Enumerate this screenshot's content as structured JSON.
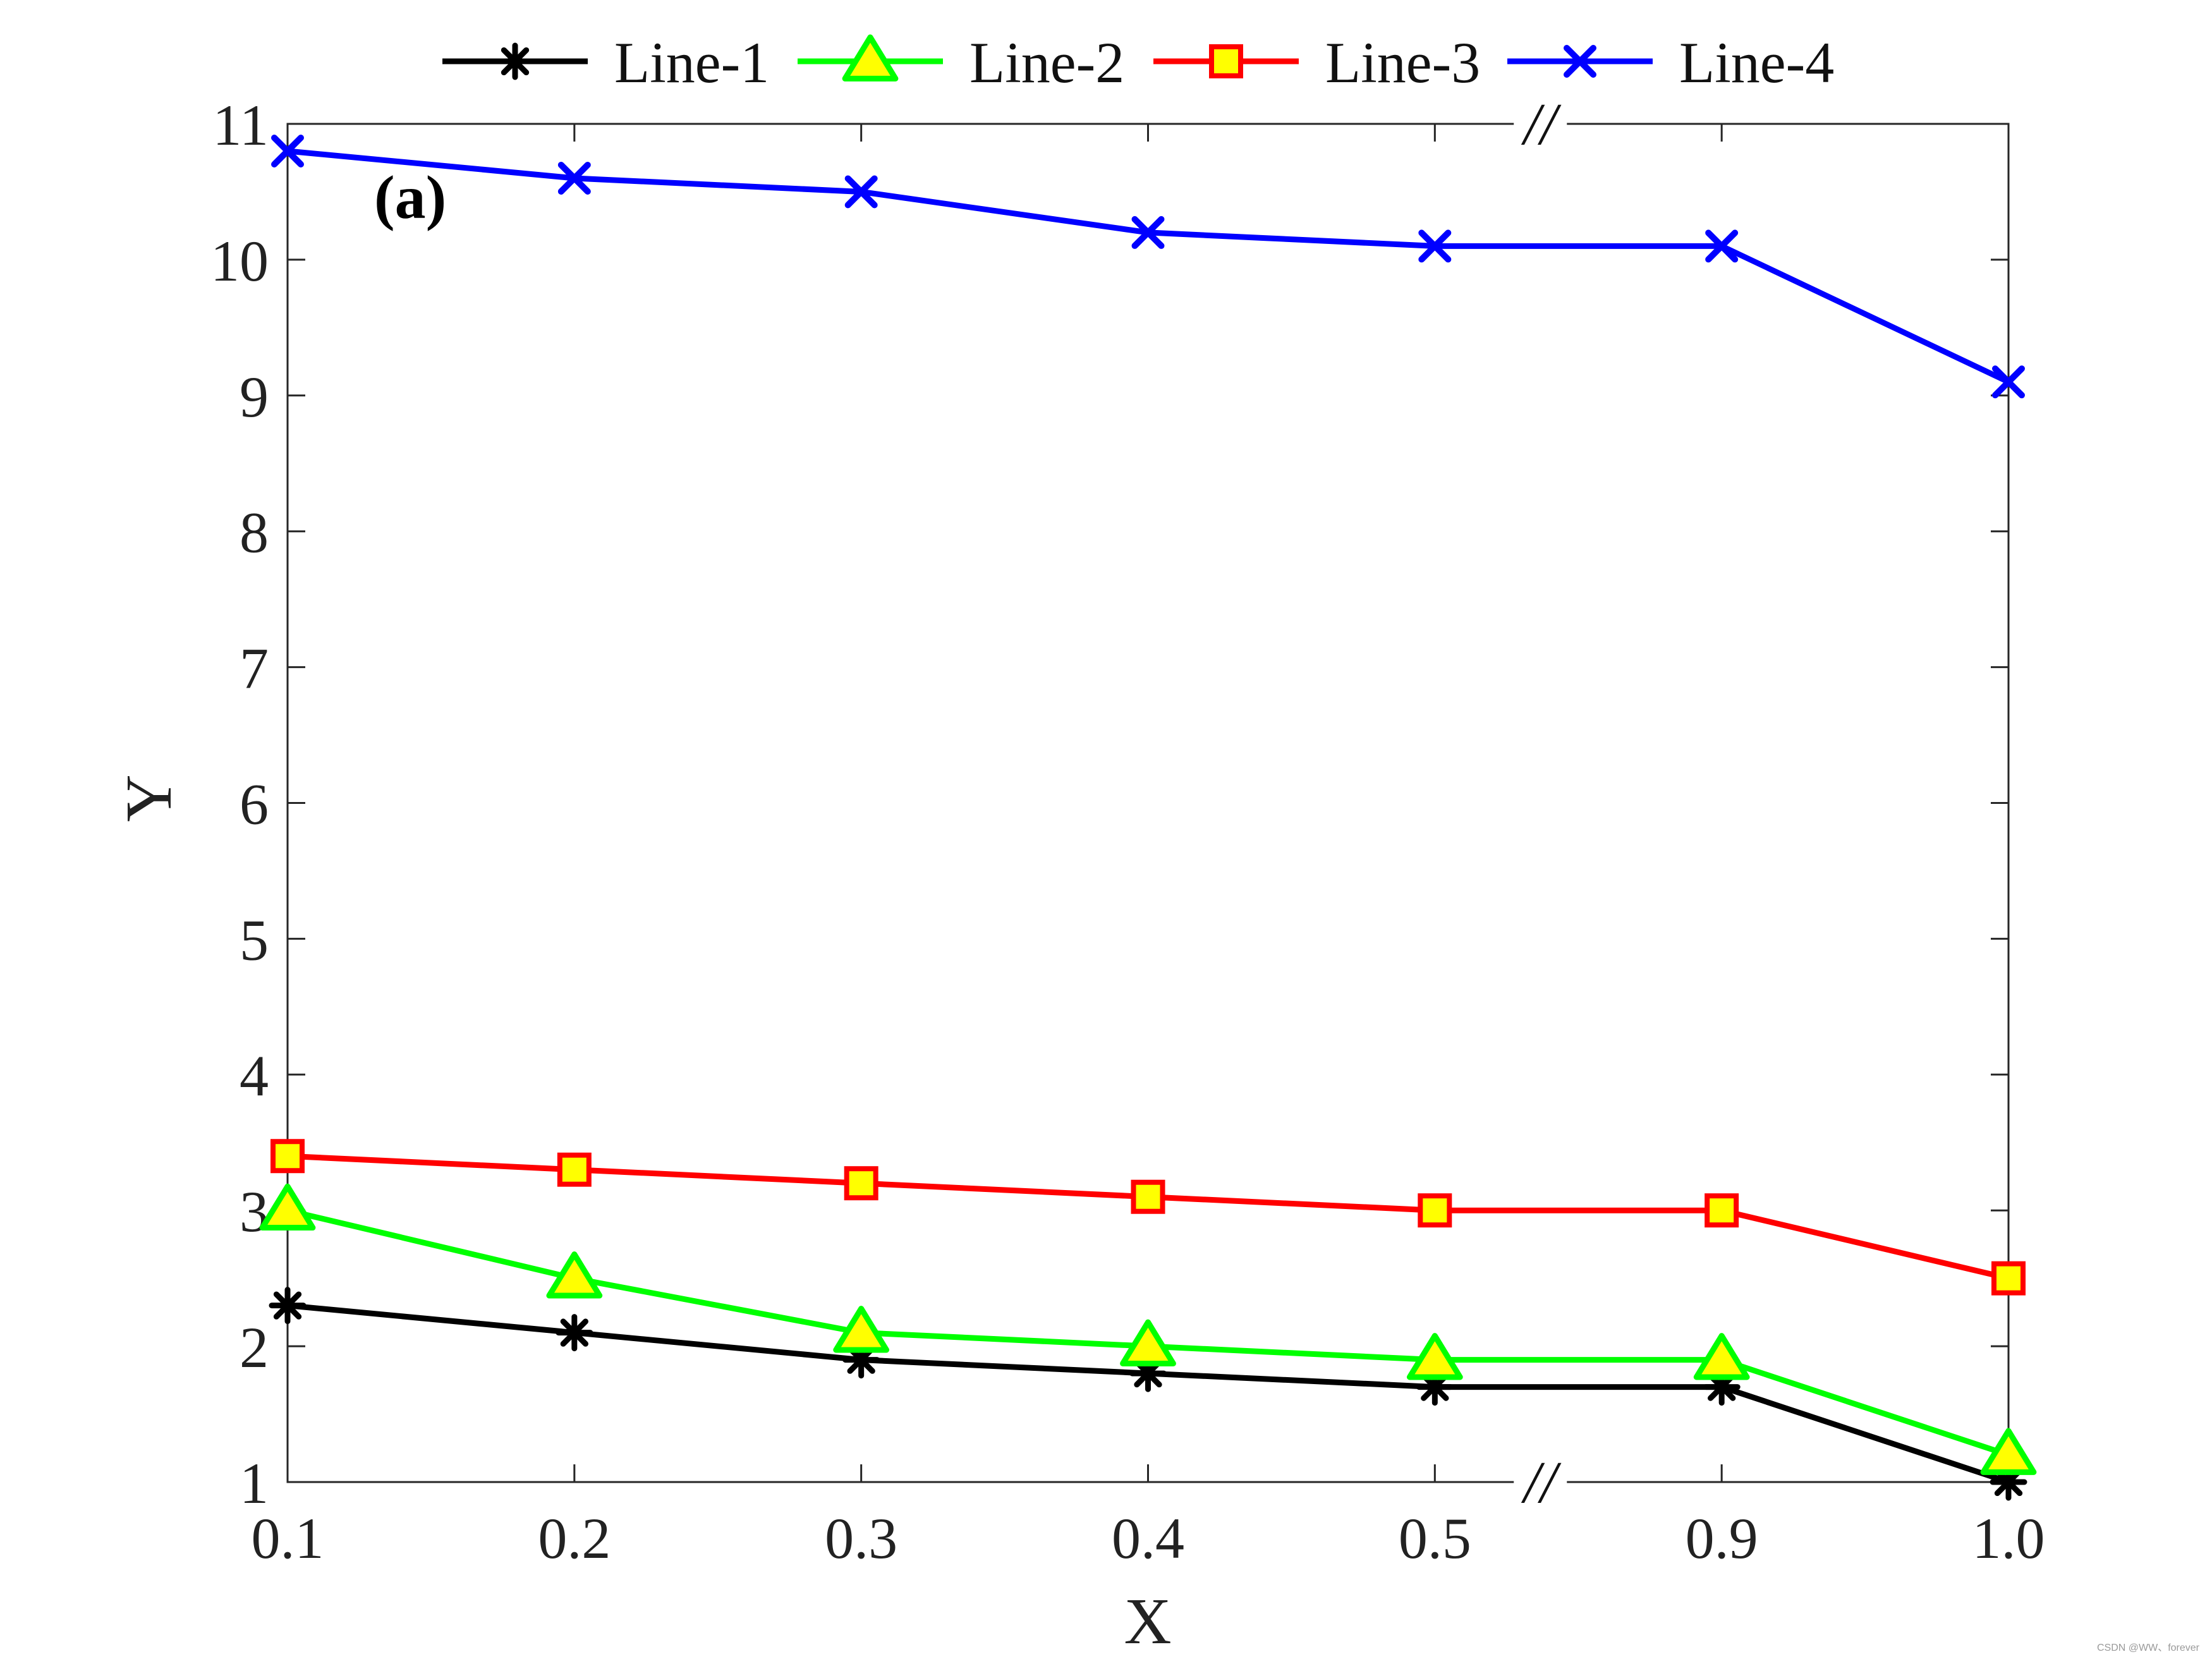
{
  "chart_data": {
    "type": "line",
    "panel_label": "(a)",
    "xlabel": "X",
    "ylabel": "Y",
    "categories": [
      "0.1",
      "0.2",
      "0.3",
      "0.4",
      "0.5",
      "0.9",
      "1.0"
    ],
    "axis_break_symbol": "//",
    "axis_break_between": [
      "0.5",
      "0.9"
    ],
    "ylim": [
      1,
      11
    ],
    "yticks": [
      "1",
      "2",
      "3",
      "4",
      "5",
      "6",
      "7",
      "8",
      "9",
      "10",
      "11"
    ],
    "grid": false,
    "legend_position": "top",
    "series": [
      {
        "name": "Line-1",
        "color": "#000000",
        "marker": "asterisk",
        "marker_face": "none",
        "values": [
          2.3,
          2.1,
          1.9,
          1.8,
          1.7,
          1.7,
          1.0
        ]
      },
      {
        "name": "Line-2",
        "color": "#00ff00",
        "marker": "triangle",
        "marker_face": "#ffff00",
        "values": [
          3.0,
          2.5,
          2.1,
          2.0,
          1.9,
          1.9,
          1.2
        ]
      },
      {
        "name": "Line-3",
        "color": "#ff0000",
        "marker": "square",
        "marker_face": "#ffff00",
        "values": [
          3.4,
          3.3,
          3.2,
          3.1,
          3.0,
          3.0,
          2.5
        ]
      },
      {
        "name": "Line-4",
        "color": "#0000ff",
        "marker": "x",
        "marker_face": "none",
        "values": [
          10.8,
          10.6,
          10.5,
          10.2,
          10.1,
          10.1,
          9.1
        ]
      }
    ]
  },
  "watermark": "CSDN @WW、forever"
}
